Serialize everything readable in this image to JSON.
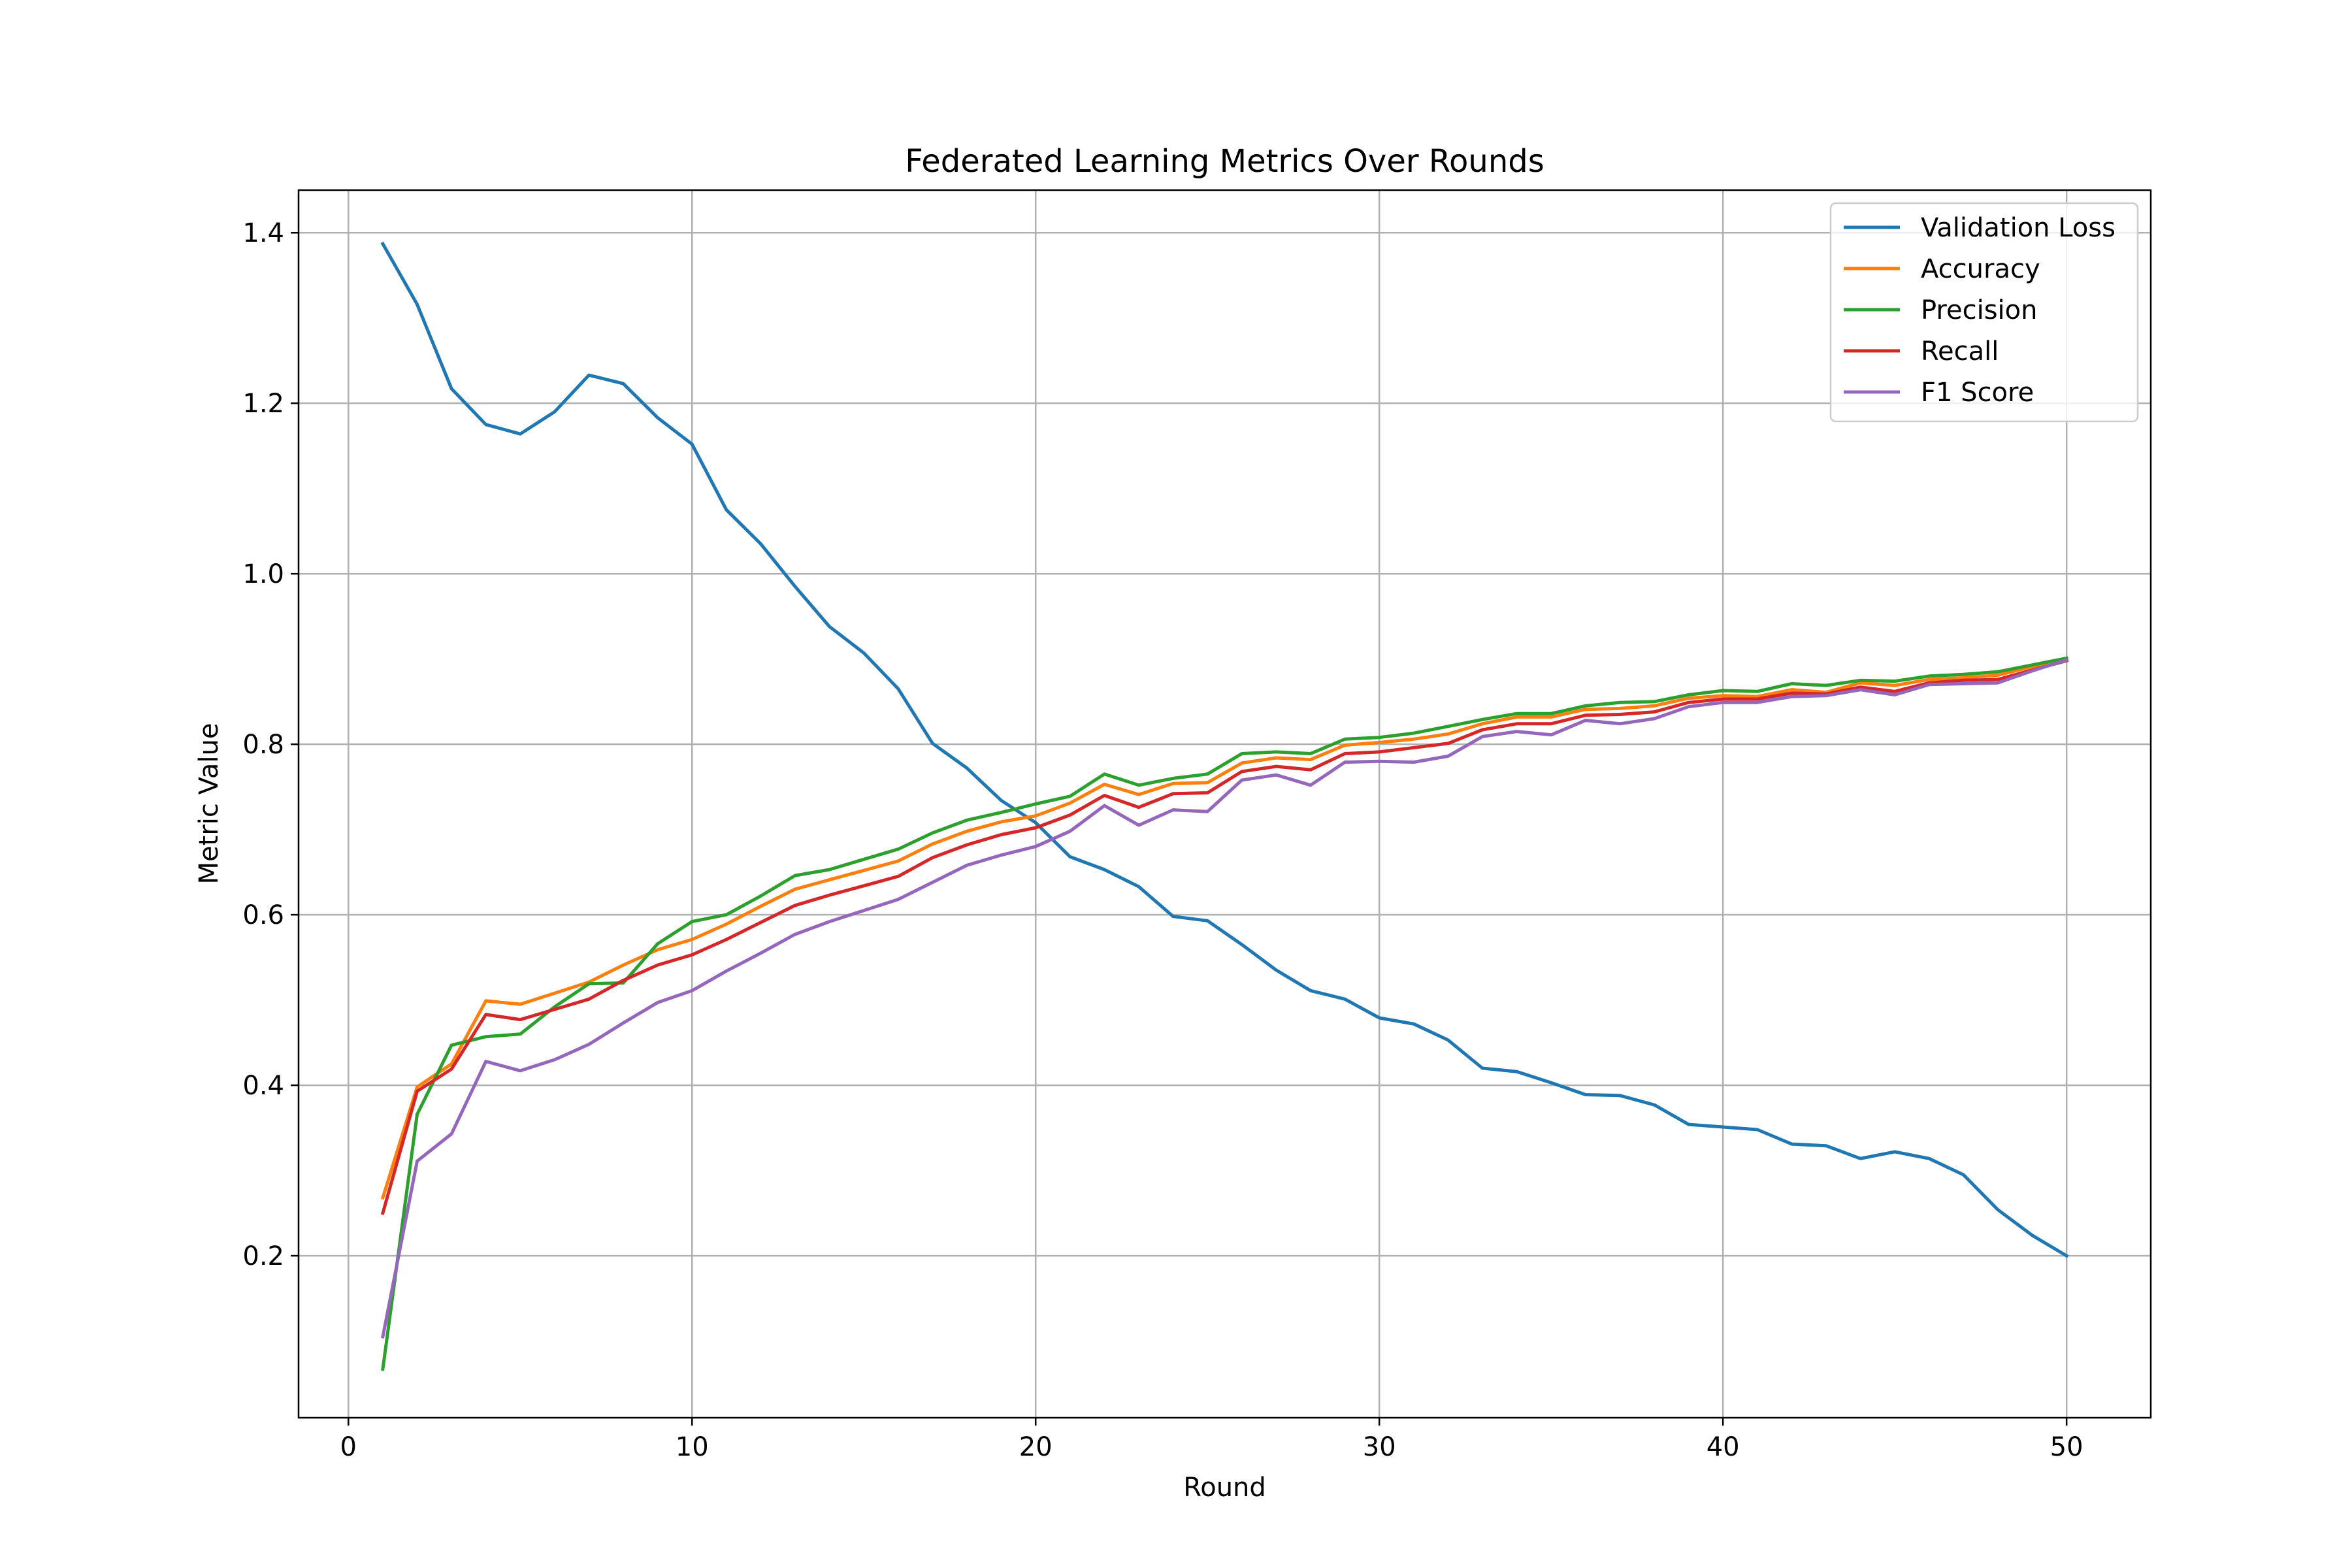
{
  "chart_data": {
    "type": "line",
    "title": "Federated Learning Metrics Over Rounds",
    "xlabel": "Round",
    "ylabel": "Metric Value",
    "xlim": [
      -1.45,
      52.45
    ],
    "ylim": [
      0.01,
      1.45
    ],
    "xticks": [
      0,
      10,
      20,
      30,
      40,
      50
    ],
    "yticks": [
      0.2,
      0.4,
      0.6,
      0.8,
      1.0,
      1.2,
      1.4
    ],
    "ytick_labels": [
      "0.2",
      "0.4",
      "0.6",
      "0.8",
      "1.0",
      "1.2",
      "1.4"
    ],
    "grid": true,
    "legend_position": "top-right",
    "x": [
      1,
      2,
      3,
      4,
      5,
      6,
      7,
      8,
      9,
      10,
      11,
      12,
      13,
      14,
      15,
      16,
      17,
      18,
      19,
      20,
      21,
      22,
      23,
      24,
      25,
      26,
      27,
      28,
      29,
      30,
      31,
      32,
      33,
      34,
      35,
      36,
      37,
      38,
      39,
      40,
      41,
      42,
      43,
      44,
      45,
      46,
      47,
      48,
      49,
      50
    ],
    "series": [
      {
        "name": "Validation Loss",
        "color": "#1f77b4",
        "values": [
          1.387,
          1.316,
          1.217,
          1.175,
          1.164,
          1.19,
          1.233,
          1.223,
          1.183,
          1.152,
          1.075,
          1.035,
          0.985,
          0.938,
          0.907,
          0.865,
          0.801,
          0.772,
          0.734,
          0.708,
          0.668,
          0.653,
          0.633,
          0.598,
          0.593,
          0.565,
          0.535,
          0.511,
          0.501,
          0.479,
          0.472,
          0.453,
          0.42,
          0.416,
          0.403,
          0.389,
          0.388,
          0.377,
          0.354,
          0.351,
          0.348,
          0.331,
          0.329,
          0.314,
          0.322,
          0.314,
          0.295,
          0.254,
          0.224,
          0.2
        ]
      },
      {
        "name": "Accuracy",
        "color": "#ff7f0e",
        "values": [
          0.268,
          0.398,
          0.425,
          0.499,
          0.495,
          0.508,
          0.521,
          0.541,
          0.559,
          0.571,
          0.589,
          0.61,
          0.63,
          0.641,
          0.652,
          0.663,
          0.683,
          0.698,
          0.709,
          0.716,
          0.731,
          0.753,
          0.741,
          0.754,
          0.755,
          0.778,
          0.784,
          0.782,
          0.799,
          0.802,
          0.806,
          0.812,
          0.824,
          0.832,
          0.832,
          0.841,
          0.842,
          0.845,
          0.854,
          0.857,
          0.856,
          0.864,
          0.861,
          0.872,
          0.869,
          0.876,
          0.878,
          0.881,
          0.891,
          0.9
        ]
      },
      {
        "name": "Precision",
        "color": "#2ca02c",
        "values": [
          0.067,
          0.366,
          0.447,
          0.457,
          0.46,
          0.492,
          0.519,
          0.52,
          0.566,
          0.592,
          0.6,
          0.622,
          0.646,
          0.653,
          0.665,
          0.677,
          0.696,
          0.711,
          0.72,
          0.73,
          0.739,
          0.765,
          0.752,
          0.76,
          0.765,
          0.789,
          0.791,
          0.789,
          0.806,
          0.808,
          0.813,
          0.821,
          0.829,
          0.836,
          0.836,
          0.845,
          0.849,
          0.85,
          0.858,
          0.863,
          0.862,
          0.871,
          0.869,
          0.875,
          0.874,
          0.88,
          0.882,
          0.885,
          0.893,
          0.901
        ]
      },
      {
        "name": "Recall",
        "color": "#d62728",
        "values": [
          0.25,
          0.393,
          0.419,
          0.483,
          0.477,
          0.489,
          0.501,
          0.523,
          0.541,
          0.553,
          0.571,
          0.591,
          0.611,
          0.623,
          0.634,
          0.645,
          0.667,
          0.682,
          0.694,
          0.702,
          0.717,
          0.74,
          0.726,
          0.742,
          0.743,
          0.768,
          0.774,
          0.77,
          0.789,
          0.791,
          0.796,
          0.801,
          0.817,
          0.824,
          0.824,
          0.834,
          0.835,
          0.838,
          0.849,
          0.853,
          0.853,
          0.86,
          0.859,
          0.867,
          0.862,
          0.872,
          0.875,
          0.876,
          0.887,
          0.898
        ]
      },
      {
        "name": "F1 Score",
        "color": "#9467bd",
        "values": [
          0.105,
          0.311,
          0.343,
          0.428,
          0.417,
          0.43,
          0.448,
          0.473,
          0.497,
          0.511,
          0.534,
          0.555,
          0.577,
          0.592,
          0.605,
          0.618,
          0.638,
          0.658,
          0.67,
          0.68,
          0.698,
          0.728,
          0.705,
          0.723,
          0.721,
          0.758,
          0.764,
          0.752,
          0.779,
          0.78,
          0.779,
          0.786,
          0.809,
          0.815,
          0.811,
          0.828,
          0.824,
          0.83,
          0.844,
          0.849,
          0.849,
          0.856,
          0.857,
          0.864,
          0.858,
          0.87,
          0.871,
          0.872,
          0.886,
          0.899
        ]
      }
    ]
  }
}
